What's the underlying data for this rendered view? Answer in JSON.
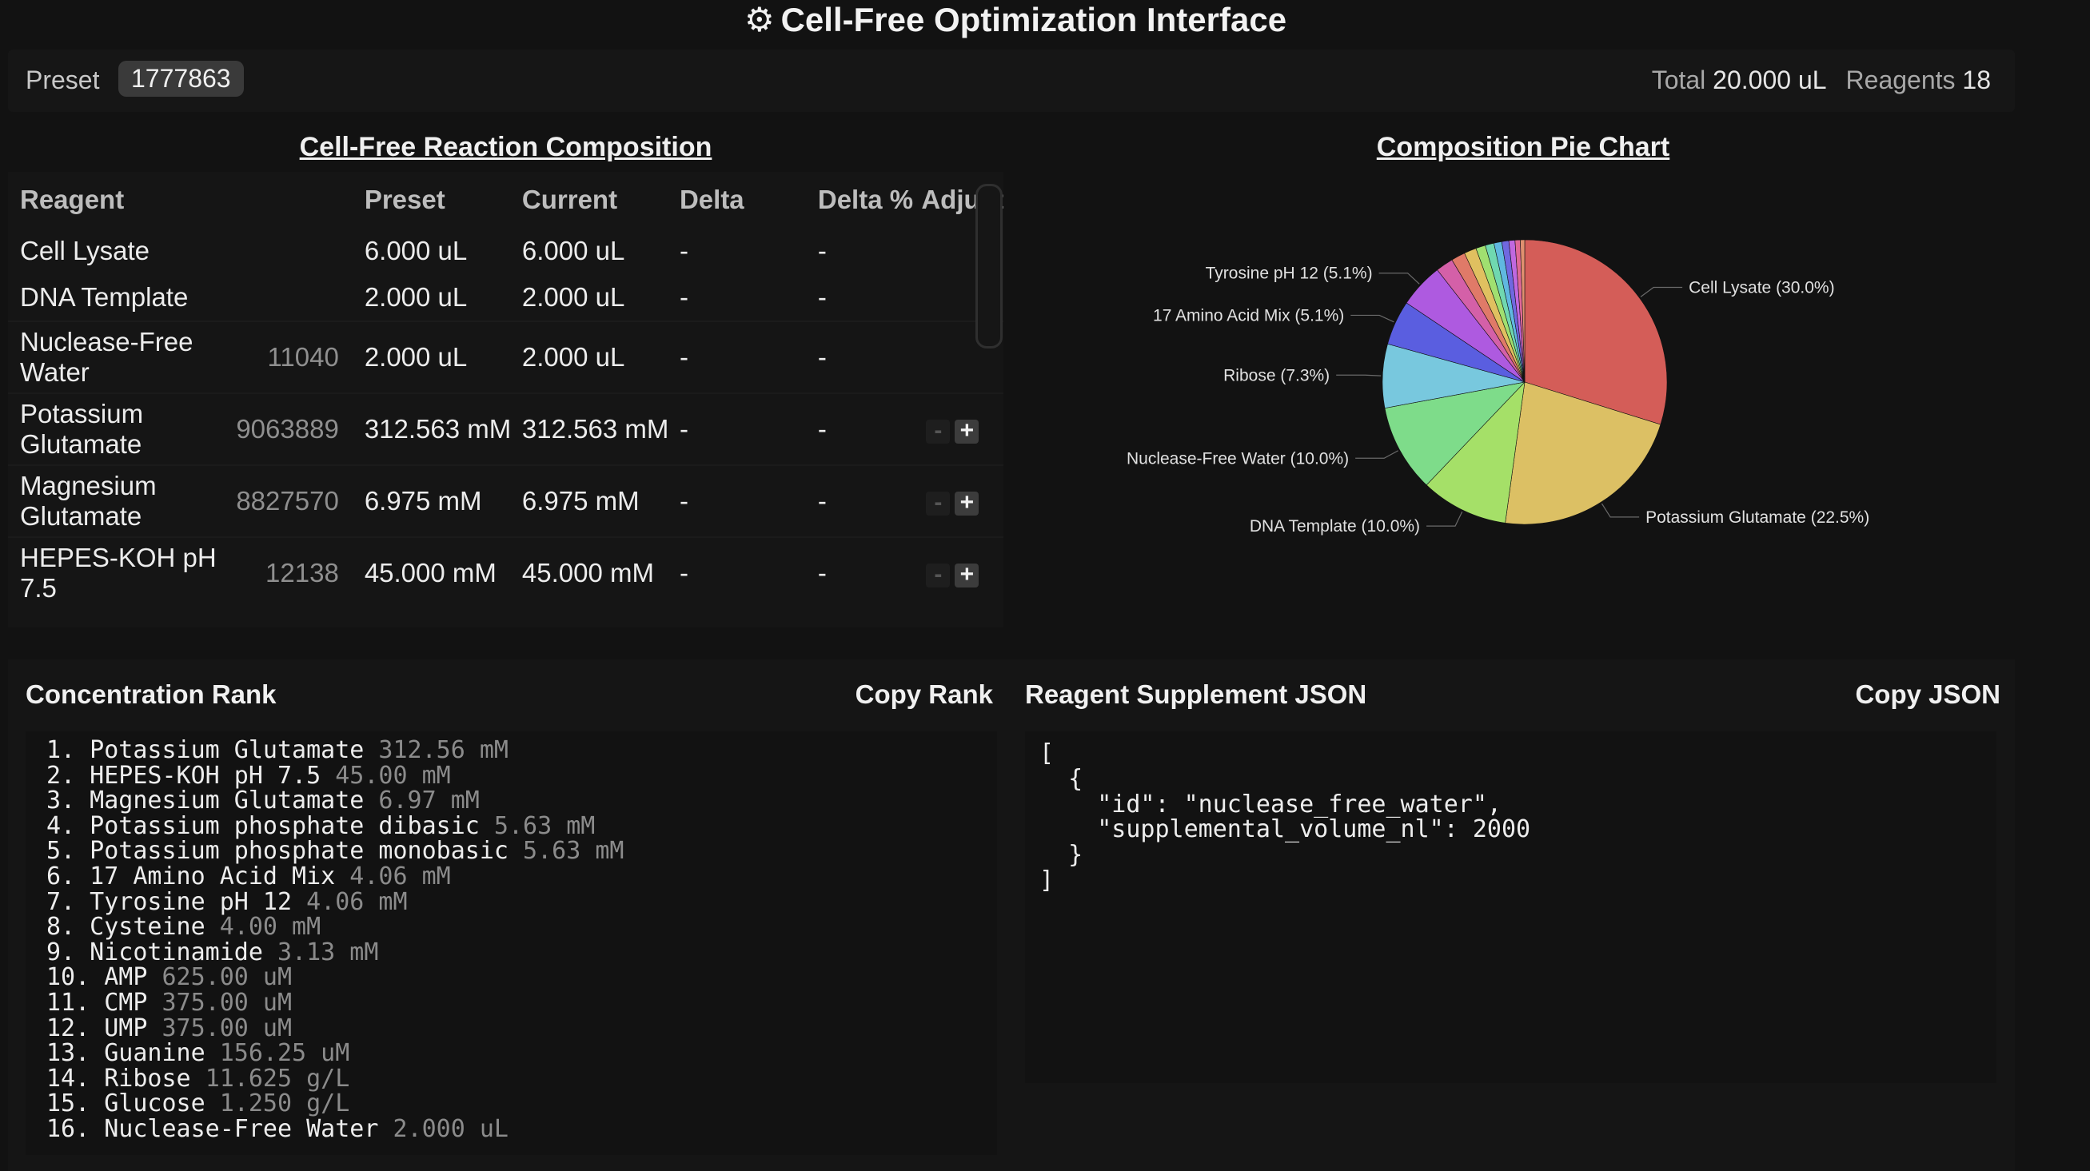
{
  "header": {
    "gear_icon": "⚙",
    "title": "Cell-Free Optimization Interface"
  },
  "preset_bar": {
    "label": "Preset",
    "value": "1777863",
    "total_label": "Total",
    "total_value": "20.000 uL",
    "reagents_label": "Reagents",
    "reagents_value": "18"
  },
  "composition": {
    "title": "Cell-Free Reaction Composition",
    "columns": [
      "Reagent",
      "",
      "Preset",
      "Current",
      "Delta",
      "Delta %",
      "Adjust"
    ],
    "rows": [
      {
        "name": "Cell Lysate",
        "id": "",
        "preset": "6.000 uL",
        "current": "6.000 uL",
        "delta": "-",
        "delta_pct": "-",
        "adjustable": false
      },
      {
        "name": "DNA Template",
        "id": "",
        "preset": "2.000 uL",
        "current": "2.000 uL",
        "delta": "-",
        "delta_pct": "-",
        "adjustable": false
      },
      {
        "name": "Nuclease-Free Water",
        "id": "11040",
        "preset": "2.000 uL",
        "current": "2.000 uL",
        "delta": "-",
        "delta_pct": "-",
        "adjustable": false
      },
      {
        "name": "Potassium Glutamate",
        "id": "9063889",
        "preset": "312.563 mM",
        "current": "312.563 mM",
        "delta": "-",
        "delta_pct": "-",
        "adjustable": true
      },
      {
        "name": "Magnesium Glutamate",
        "id": "8827570",
        "preset": "6.975 mM",
        "current": "6.975 mM",
        "delta": "-",
        "delta_pct": "-",
        "adjustable": true
      },
      {
        "name": "HEPES-KOH pH 7.5",
        "id": "12138",
        "preset": "45.000 mM",
        "current": "45.000 mM",
        "delta": "-",
        "delta_pct": "-",
        "adjustable": true
      }
    ],
    "adjust_minus": "-",
    "adjust_plus": "+"
  },
  "pie": {
    "title": "Composition Pie Chart"
  },
  "chart_data": {
    "type": "pie",
    "title": "Composition Pie Chart",
    "slices": [
      {
        "label": "Cell Lysate (30.0%)",
        "value": 30.0,
        "color": "#d45d58",
        "labeled": true
      },
      {
        "label": "Potassium Glutamate (22.5%)",
        "value": 22.5,
        "color": "#dcc064",
        "labeled": true
      },
      {
        "label": "DNA Template (10.0%)",
        "value": 10.0,
        "color": "#a5e068",
        "labeled": true
      },
      {
        "label": "Nuclease-Free Water (10.0%)",
        "value": 10.0,
        "color": "#7edc8a",
        "labeled": true
      },
      {
        "label": "Ribose (7.3%)",
        "value": 7.3,
        "color": "#78c8de",
        "labeled": true
      },
      {
        "label": "17 Amino Acid Mix (5.1%)",
        "value": 5.1,
        "color": "#5a5ee0",
        "labeled": true
      },
      {
        "label": "Tyrosine pH 12 (5.1%)",
        "value": 5.1,
        "color": "#ae5ae0",
        "labeled": true
      },
      {
        "label": "",
        "value": 2.0,
        "color": "#d460a8",
        "labeled": false
      },
      {
        "label": "",
        "value": 1.6,
        "color": "#e07a68",
        "labeled": false
      },
      {
        "label": "",
        "value": 1.4,
        "color": "#e0c060",
        "labeled": false
      },
      {
        "label": "",
        "value": 1.1,
        "color": "#a0e070",
        "labeled": false
      },
      {
        "label": "",
        "value": 1.0,
        "color": "#70d8b0",
        "labeled": false
      },
      {
        "label": "",
        "value": 0.9,
        "color": "#60b8e0",
        "labeled": false
      },
      {
        "label": "",
        "value": 0.8,
        "color": "#7068e0",
        "labeled": false
      },
      {
        "label": "",
        "value": 0.7,
        "color": "#c068e0",
        "labeled": false
      },
      {
        "label": "",
        "value": 0.6,
        "color": "#e06898",
        "labeled": false
      },
      {
        "label": "",
        "value": 0.5,
        "color": "#e09070",
        "labeled": false
      }
    ]
  },
  "rank": {
    "title": "Concentration Rank",
    "copy_label": "Copy Rank",
    "items": [
      {
        "label": "1. Potassium Glutamate",
        "value": "312.56 mM"
      },
      {
        "label": "2. HEPES-KOH pH 7.5",
        "value": "45.00 mM"
      },
      {
        "label": "3. Magnesium Glutamate",
        "value": "6.97 mM"
      },
      {
        "label": "4. Potassium phosphate dibasic",
        "value": "5.63 mM"
      },
      {
        "label": "5. Potassium phosphate monobasic",
        "value": "5.63 mM"
      },
      {
        "label": "6. 17 Amino Acid Mix",
        "value": "4.06 mM"
      },
      {
        "label": "7. Tyrosine pH 12",
        "value": "4.06 mM"
      },
      {
        "label": "8. Cysteine",
        "value": "4.00 mM"
      },
      {
        "label": "9. Nicotinamide",
        "value": "3.13 mM"
      },
      {
        "label": "10. AMP",
        "value": "625.00 uM"
      },
      {
        "label": "11. CMP",
        "value": "375.00 uM"
      },
      {
        "label": "12. UMP",
        "value": "375.00 uM"
      },
      {
        "label": "13. Guanine",
        "value": "156.25 uM"
      },
      {
        "label": "14. Ribose",
        "value": "11.625 g/L"
      },
      {
        "label": "15. Glucose",
        "value": "1.250 g/L"
      },
      {
        "label": "16. Nuclease-Free Water",
        "value": "2.000 uL"
      }
    ]
  },
  "supplement": {
    "title": "Reagent Supplement JSON",
    "copy_label": "Copy JSON",
    "json_text": "[\n  {\n    \"id\": \"nuclease_free_water\",\n    \"supplemental_volume_nl\": 2000\n  }\n]"
  }
}
